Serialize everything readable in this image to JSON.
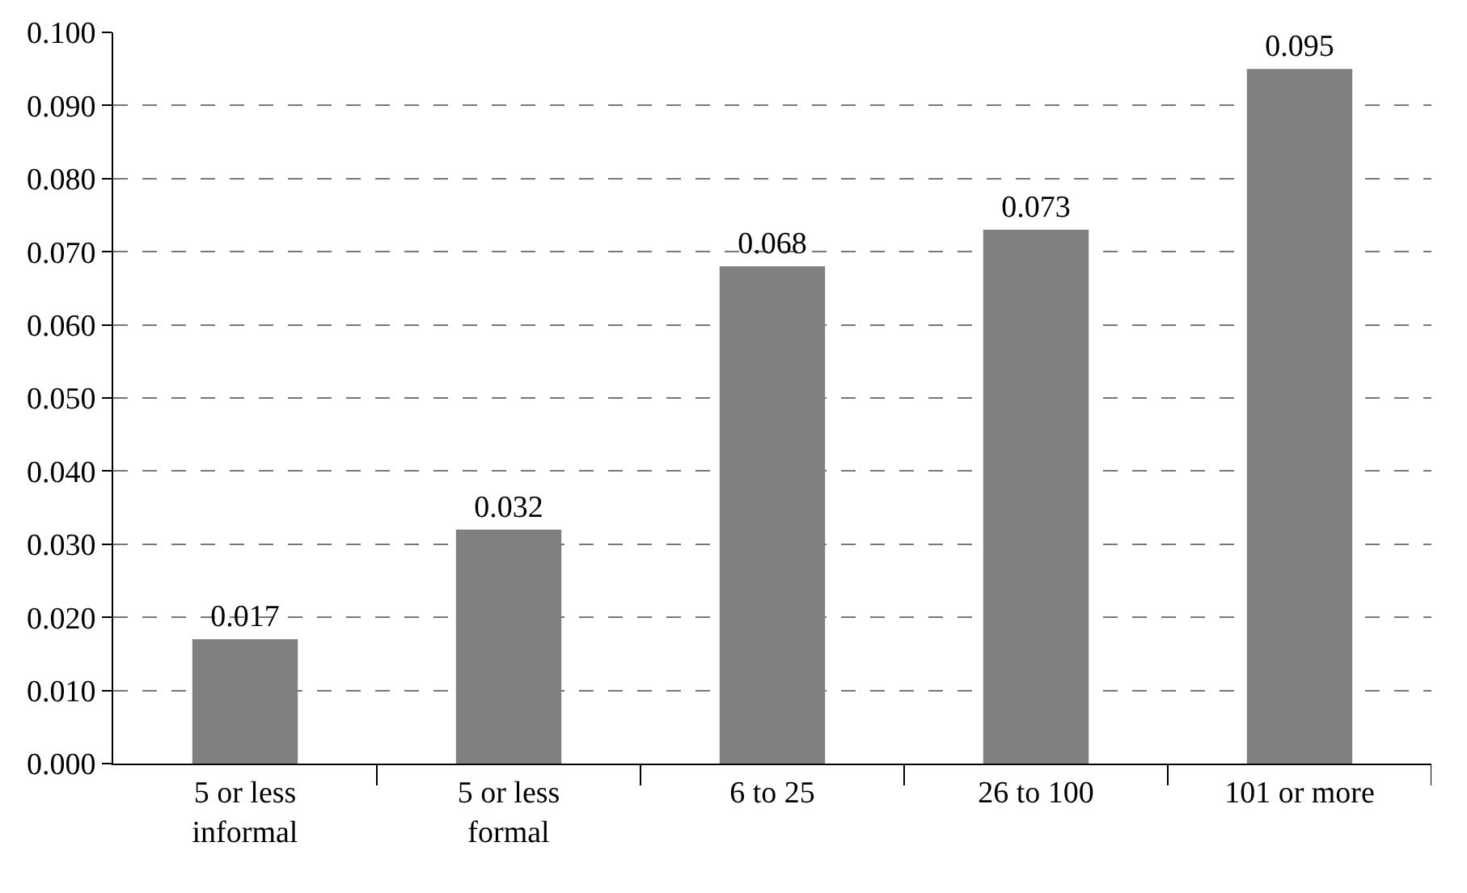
{
  "chart_data": {
    "type": "bar",
    "categories": [
      "5 or less\ninformal",
      "5 or less\nformal",
      "6 to 25",
      "26 to 100",
      "101 or more"
    ],
    "values": [
      0.017,
      0.032,
      0.068,
      0.073,
      0.095
    ],
    "color": "#808080",
    "ylim": [
      0,
      0.1
    ],
    "yticks": [
      {
        "value": 0,
        "label": "0.000"
      },
      {
        "value": 0.01,
        "label": "0.010"
      },
      {
        "value": 0.02,
        "label": "0.020"
      },
      {
        "value": 0.03,
        "label": "0.030"
      },
      {
        "value": 0.04,
        "label": "0.040"
      },
      {
        "value": 0.05,
        "label": "0.050"
      },
      {
        "value": 0.06,
        "label": "0.060"
      },
      {
        "value": 0.07,
        "label": "0.070"
      },
      {
        "value": 0.08,
        "label": "0.080"
      },
      {
        "value": 0.09,
        "label": "0.090"
      },
      {
        "value": 0.1,
        "label": "0.100"
      }
    ],
    "grid": "y",
    "data_labels": true,
    "legend": false
  }
}
